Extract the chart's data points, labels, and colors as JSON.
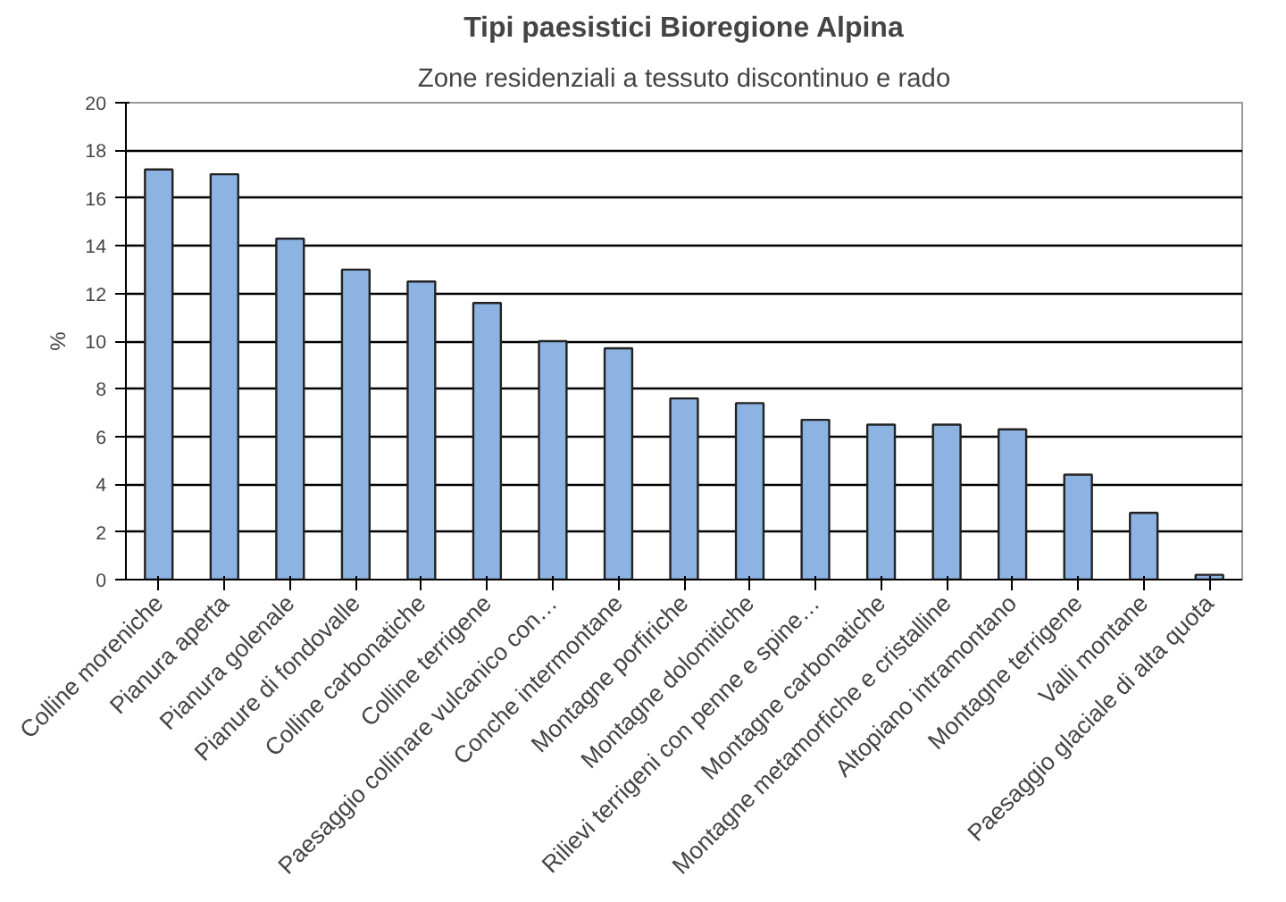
{
  "chart_data": {
    "type": "bar",
    "title": "Tipi paesistici Bioregione Alpina",
    "subtitle": "Zone residenziali a tessuto discontinuo e rado",
    "ylabel": "%",
    "categories": [
      "Colline moreniche",
      "Pianura aperta",
      "Pianura golenale",
      "Pianure di fondovalle",
      "Colline carbonatiche",
      "Colline terrigene",
      "Paesaggio collinare vulcanico con…",
      "Conche intermontane",
      "Montagne porfiriche",
      "Montagne dolomitiche",
      "Rilievi terrigeni con penne e spine…",
      "Montagne carbonatiche",
      "Montagne metamorfiche e cristalline",
      "Altopiano intramontano",
      "Montagne terrigene",
      "Valli montane",
      "Paesaggio glaciale di alta quota"
    ],
    "values": [
      17.2,
      17.0,
      14.3,
      13.0,
      12.5,
      11.6,
      10.0,
      9.7,
      7.6,
      7.4,
      6.7,
      6.5,
      6.5,
      6.3,
      4.4,
      2.8,
      0.2
    ],
    "color": "#8db3e2",
    "ylim": [
      0,
      20
    ],
    "yticks": [
      0,
      2,
      4,
      6,
      8,
      10,
      12,
      14,
      16,
      18,
      20
    ],
    "grid": "y"
  }
}
